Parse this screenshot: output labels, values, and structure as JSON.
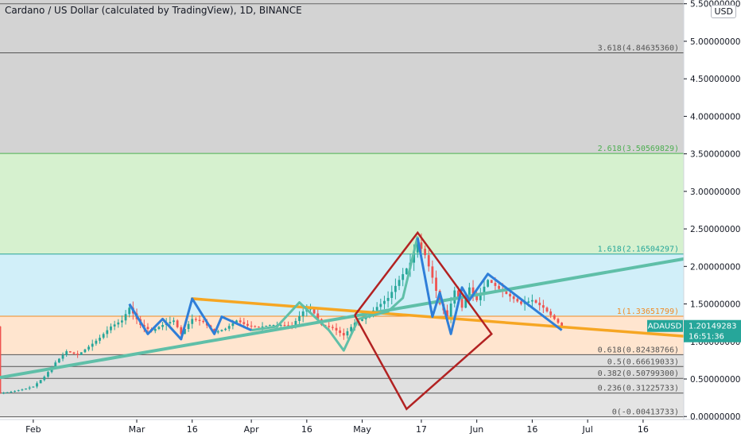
{
  "header": {
    "title": "Cardano / US Dollar (calculated by TradingView), 1D, BINANCE",
    "currency": "USD"
  },
  "colors": {
    "up": "#26a69a",
    "down": "#ef5350",
    "zigzag": "#2f7ed8",
    "resistance": "#f6a623",
    "support": "#5fbfa8",
    "diamond": "#b22222",
    "price_tag": "#26a69a"
  },
  "price_tag": {
    "symbol": "ADAUSD",
    "price": "1.20149283",
    "countdown": "16:51:36",
    "value": 1.2015
  },
  "chart_data": {
    "type": "candlestick",
    "x_axis": {
      "ticks": [
        {
          "label": "Feb",
          "day": 0
        },
        {
          "label": "Mar",
          "day": 28
        },
        {
          "label": "16",
          "day": 43
        },
        {
          "label": "Apr",
          "day": 59
        },
        {
          "label": "16",
          "day": 74
        },
        {
          "label": "May",
          "day": 89
        },
        {
          "label": "17",
          "day": 105
        },
        {
          "label": "Jun",
          "day": 120
        },
        {
          "label": "16",
          "day": 135
        },
        {
          "label": "Jul",
          "day": 150
        },
        {
          "label": "16",
          "day": 165
        }
      ],
      "range": [
        -9,
        176
      ]
    },
    "y_axis": {
      "ticks": [
        "0.00000000",
        "0.50000000",
        "1.00000000",
        "1.50000000",
        "2.00000000",
        "2.50000000",
        "3.00000000",
        "3.50000000",
        "4.00000000",
        "4.50000000",
        "5.00000000",
        "5.50000000"
      ],
      "range": [
        -0.04,
        5.55
      ]
    },
    "fib_levels": [
      {
        "ratio": "0",
        "price": "-0.00413733",
        "value": -0.0041
      },
      {
        "ratio": "0.236",
        "price": "0.31225733",
        "value": 0.3123
      },
      {
        "ratio": "0.382",
        "price": "0.50799300",
        "value": 0.508
      },
      {
        "ratio": "0.5",
        "price": "0.66619033",
        "value": 0.6662
      },
      {
        "ratio": "0.618",
        "price": "0.82438766",
        "value": 0.8244
      },
      {
        "ratio": "1",
        "price": "1.33651799",
        "value": 1.3365
      },
      {
        "ratio": "1.618",
        "price": "2.16504297",
        "value": 2.165
      },
      {
        "ratio": "2.618",
        "price": "3.50569829",
        "value": 3.5057
      },
      {
        "ratio": "3.618",
        "price": "4.84635360",
        "value": 4.8464
      }
    ],
    "fib_zones": [
      {
        "from": -0.0041,
        "to": 0.3123,
        "color": "#9e9e9e",
        "alpha": 0.28
      },
      {
        "from": 0.3123,
        "to": 0.508,
        "color": "#9e9e9e",
        "alpha": 0.32
      },
      {
        "from": 0.508,
        "to": 0.6662,
        "color": "#9e9e9e",
        "alpha": 0.36
      },
      {
        "from": 0.6662,
        "to": 0.8244,
        "color": "#9e9e9e",
        "alpha": 0.32
      },
      {
        "from": 0.8244,
        "to": 1.3365,
        "color": "#ffcfa8",
        "alpha": 0.55
      },
      {
        "from": 1.3365,
        "to": 2.165,
        "color": "#b3e5f5",
        "alpha": 0.6
      },
      {
        "from": 2.165,
        "to": 3.5057,
        "color": "#c8ecbf",
        "alpha": 0.75
      },
      {
        "from": 3.5057,
        "to": 4.8464,
        "color": "#9e9e9e",
        "alpha": 0.45
      },
      {
        "from": 4.8464,
        "to": 5.55,
        "color": "#9e9e9e",
        "alpha": 0.45
      }
    ],
    "series_close": [
      {
        "day": -9,
        "close": 0.31
      },
      {
        "day": -6,
        "close": 0.33
      },
      {
        "day": -3,
        "close": 0.36
      },
      {
        "day": 0,
        "close": 0.4
      },
      {
        "day": 3,
        "close": 0.53
      },
      {
        "day": 6,
        "close": 0.72
      },
      {
        "day": 9,
        "close": 0.87
      },
      {
        "day": 12,
        "close": 0.82
      },
      {
        "day": 15,
        "close": 0.93
      },
      {
        "day": 18,
        "close": 1.05
      },
      {
        "day": 21,
        "close": 1.2
      },
      {
        "day": 24,
        "close": 1.28
      },
      {
        "day": 26,
        "close": 1.45
      },
      {
        "day": 29,
        "close": 1.22
      },
      {
        "day": 32,
        "close": 1.14
      },
      {
        "day": 35,
        "close": 1.22
      },
      {
        "day": 38,
        "close": 1.28
      },
      {
        "day": 40,
        "close": 1.1
      },
      {
        "day": 43,
        "close": 1.3
      },
      {
        "day": 46,
        "close": 1.26
      },
      {
        "day": 49,
        "close": 1.12
      },
      {
        "day": 52,
        "close": 1.17
      },
      {
        "day": 55,
        "close": 1.28
      },
      {
        "day": 58,
        "close": 1.21
      },
      {
        "day": 61,
        "close": 1.19
      },
      {
        "day": 64,
        "close": 1.22
      },
      {
        "day": 67,
        "close": 1.22
      },
      {
        "day": 70,
        "close": 1.21
      },
      {
        "day": 73,
        "close": 1.4
      },
      {
        "day": 75,
        "close": 1.45
      },
      {
        "day": 78,
        "close": 1.22
      },
      {
        "day": 81,
        "close": 1.18
      },
      {
        "day": 84,
        "close": 1.08
      },
      {
        "day": 87,
        "close": 1.25
      },
      {
        "day": 90,
        "close": 1.32
      },
      {
        "day": 93,
        "close": 1.46
      },
      {
        "day": 96,
        "close": 1.58
      },
      {
        "day": 99,
        "close": 1.82
      },
      {
        "day": 102,
        "close": 2.05
      },
      {
        "day": 104,
        "close": 2.32
      },
      {
        "day": 106,
        "close": 2.15
      },
      {
        "day": 108,
        "close": 1.85
      },
      {
        "day": 110,
        "close": 1.5
      },
      {
        "day": 112,
        "close": 1.33
      },
      {
        "day": 114,
        "close": 1.68
      },
      {
        "day": 116,
        "close": 1.45
      },
      {
        "day": 118,
        "close": 1.72
      },
      {
        "day": 120,
        "close": 1.55
      },
      {
        "day": 123,
        "close": 1.82
      },
      {
        "day": 126,
        "close": 1.7
      },
      {
        "day": 129,
        "close": 1.6
      },
      {
        "day": 132,
        "close": 1.5
      },
      {
        "day": 135,
        "close": 1.55
      },
      {
        "day": 138,
        "close": 1.45
      },
      {
        "day": 141,
        "close": 1.3
      },
      {
        "day": 143,
        "close": 1.2
      }
    ],
    "drawings": {
      "zigzag": [
        [
          [
            26,
            1.5
          ],
          [
            31,
            1.1
          ],
          [
            35,
            1.3
          ],
          [
            40,
            1.03
          ],
          [
            43,
            1.57
          ],
          [
            49,
            1.1
          ],
          [
            51,
            1.33
          ],
          [
            59,
            1.15
          ]
        ],
        [
          [
            104,
            2.38
          ],
          [
            108,
            1.33
          ],
          [
            110,
            1.65
          ],
          [
            113,
            1.1
          ],
          [
            116,
            1.72
          ],
          [
            118,
            1.55
          ],
          [
            123,
            1.9
          ],
          [
            143,
            1.15
          ]
        ]
      ],
      "green_wave": [
        [
          59,
          1.15
        ],
        [
          66,
          1.2
        ],
        [
          72,
          1.52
        ],
        [
          80,
          1.15
        ],
        [
          84,
          0.88
        ],
        [
          88,
          1.3
        ],
        [
          92,
          1.35
        ],
        [
          96,
          1.4
        ],
        [
          100,
          1.58
        ],
        [
          104,
          2.4
        ]
      ],
      "resistance": [
        [
          43,
          1.57
        ],
        [
          176,
          1.07
        ]
      ],
      "support": [
        [
          -9,
          0.52
        ],
        [
          176,
          2.1
        ]
      ],
      "diamond": [
        [
          87,
          1.35
        ],
        [
          104,
          2.45
        ],
        [
          124,
          1.1
        ],
        [
          101,
          0.1
        ]
      ]
    }
  }
}
